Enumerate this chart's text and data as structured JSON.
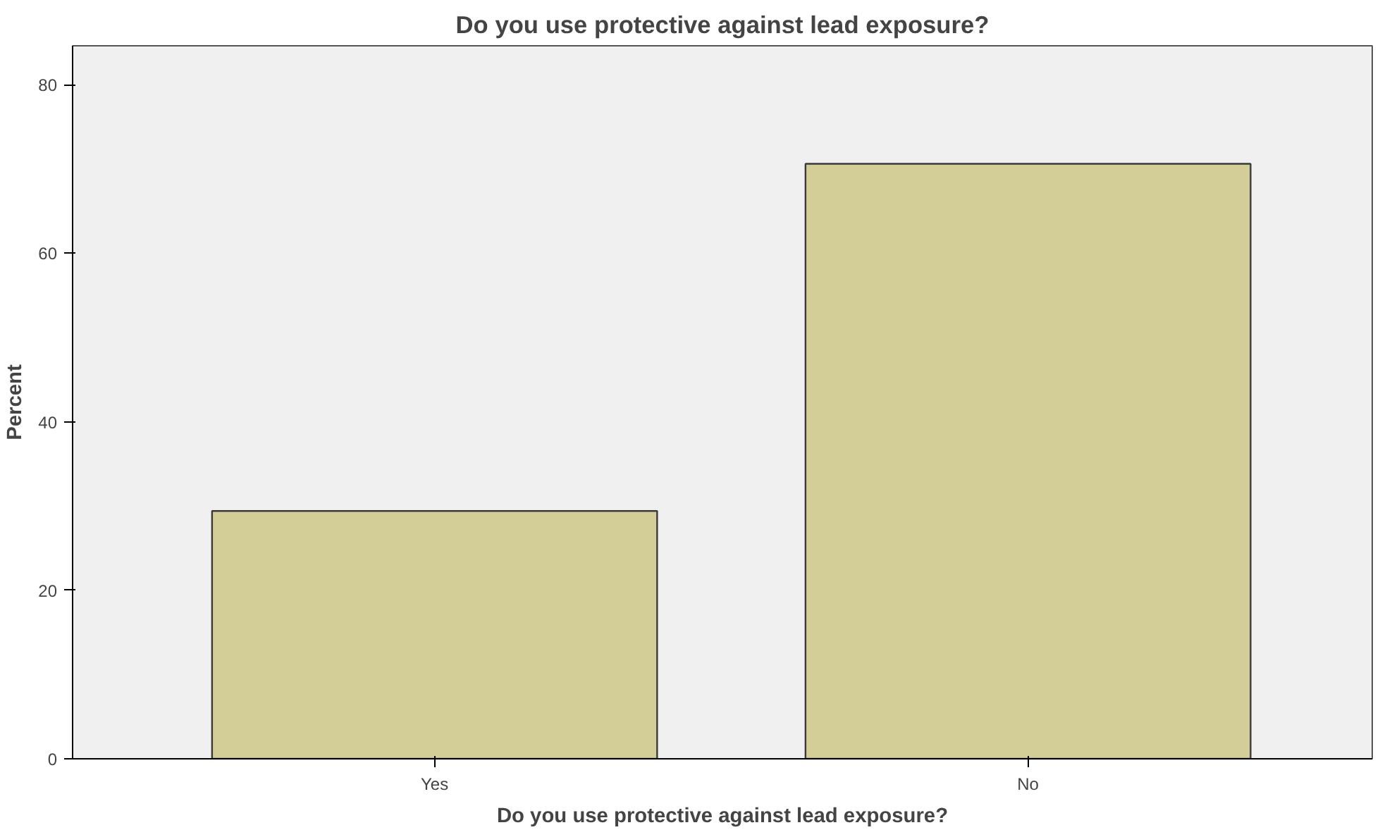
{
  "chart_data": {
    "type": "bar",
    "title": "Do you use protective against lead exposure?",
    "xlabel": "Do you use protective against lead exposure?",
    "ylabel": "Percent",
    "categories": [
      "Yes",
      "No"
    ],
    "values": [
      29.4,
      70.6
    ],
    "color": "#d3ce97",
    "ylim": [
      0,
      84.6
    ],
    "yticks": [
      0,
      20,
      40,
      60,
      80
    ],
    "grid": false
  }
}
